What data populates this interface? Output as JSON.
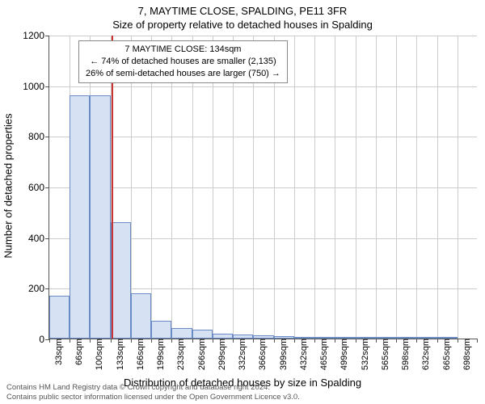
{
  "title_main": "7, MAYTIME CLOSE, SPALDING, PE11 3FR",
  "title_sub": "Size of property relative to detached houses in Spalding",
  "ylabel": "Number of detached properties",
  "xlabel": "Distribution of detached houses by size in Spalding",
  "footer_line1": "Contains HM Land Registry data © Crown copyright and database right 2024.",
  "footer_line2": "Contains public sector information licensed under the Open Government Licence v3.0.",
  "info_box": {
    "line1": "7 MAYTIME CLOSE: 134sqm",
    "line2": "← 74% of detached houses are smaller (2,135)",
    "line3": "26% of semi-detached houses are larger (750) →"
  },
  "chart": {
    "type": "histogram",
    "ylim": [
      0,
      1200
    ],
    "yticks": [
      0,
      200,
      400,
      600,
      800,
      1000,
      1200
    ],
    "x_categories": [
      "33sqm",
      "66sqm",
      "100sqm",
      "133sqm",
      "166sqm",
      "199sqm",
      "233sqm",
      "266sqm",
      "299sqm",
      "332sqm",
      "366sqm",
      "399sqm",
      "432sqm",
      "465sqm",
      "499sqm",
      "532sqm",
      "565sqm",
      "598sqm",
      "632sqm",
      "665sqm",
      "698sqm"
    ],
    "values": [
      170,
      960,
      960,
      460,
      180,
      70,
      40,
      35,
      20,
      15,
      12,
      10,
      6,
      4,
      3,
      2,
      2,
      1,
      1,
      1
    ],
    "bar_fill": "#d6e2f3",
    "bar_border": "#6b8bc4",
    "marker_value": 134,
    "marker_color": "#cc3333",
    "grid_color": "#cccccc",
    "background": "#ffffff",
    "title_fontsize": 13,
    "label_fontsize": 13,
    "tick_fontsize": 12,
    "xtick_fontsize": 11,
    "info_fontsize": 11,
    "footer_fontsize": 9.5
  }
}
